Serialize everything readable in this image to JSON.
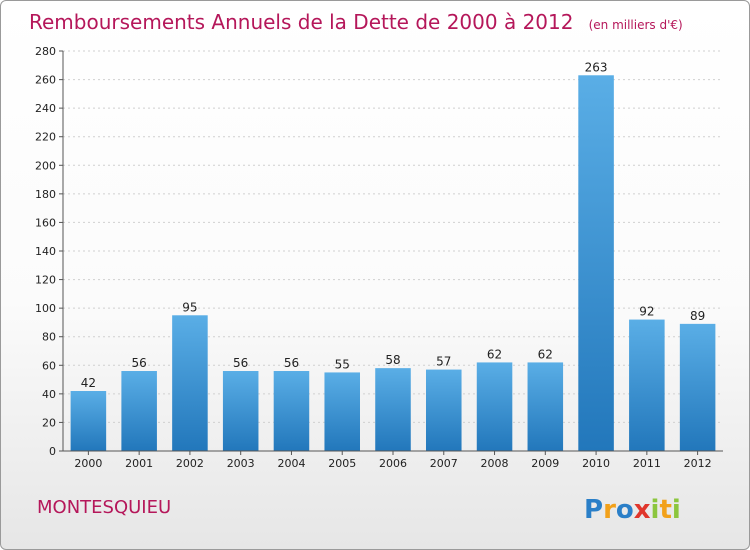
{
  "chart_data": {
    "type": "bar",
    "title": "Remboursements Annuels de la Dette de 2000 à 2012",
    "subtitle": "(en milliers d'€)",
    "categories": [
      "2000",
      "2001",
      "2002",
      "2003",
      "2004",
      "2005",
      "2006",
      "2007",
      "2008",
      "2009",
      "2010",
      "2011",
      "2012"
    ],
    "values": [
      42,
      56,
      95,
      56,
      56,
      55,
      58,
      57,
      62,
      62,
      263,
      92,
      89
    ],
    "ylim": [
      0,
      280
    ],
    "yticks": [
      0,
      20,
      40,
      60,
      80,
      100,
      120,
      140,
      160,
      180,
      200,
      220,
      240,
      260,
      280
    ],
    "grid": true,
    "xlabel": "",
    "ylabel": "",
    "colors": {
      "bar_light": "#5aaee6",
      "bar_dark": "#2277bb",
      "title": "#b5175a"
    }
  },
  "commune": "MONTESQUIEU",
  "logo": {
    "letters": [
      "P",
      "r",
      "o",
      "x",
      "i",
      "t",
      "i"
    ],
    "colors": [
      "#2a7fc8",
      "#f2a11a",
      "#2a7fc8",
      "#e0362c",
      "#8cc63e",
      "#f2a11a",
      "#8cc63e"
    ]
  }
}
